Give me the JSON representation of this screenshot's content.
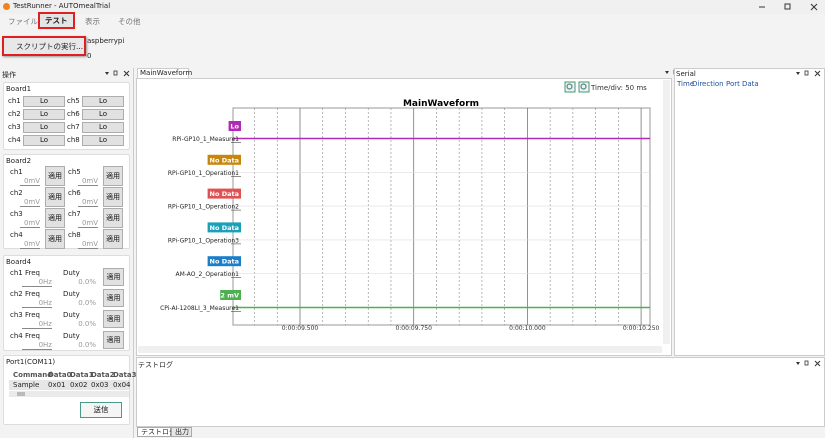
{
  "window": {
    "title": "TestRunner - AUTOmealTrial"
  },
  "menu": [
    "ファイル",
    "テスト",
    "表示",
    "その他"
  ],
  "dropdown": {
    "item": "スクリプトの実行..."
  },
  "toolbar": {
    "device": "aspberrypi",
    "value": "0"
  },
  "operations": {
    "title": "操作",
    "board1": {
      "title": "Board1",
      "channels": [
        {
          "name": "ch1",
          "button": "Lo"
        },
        {
          "name": "ch2",
          "button": "Lo"
        },
        {
          "name": "ch3",
          "button": "Lo"
        },
        {
          "name": "ch4",
          "button": "Lo"
        },
        {
          "name": "ch5",
          "button": "Lo"
        },
        {
          "name": "ch6",
          "button": "Lo"
        },
        {
          "name": "ch7",
          "button": "Lo"
        },
        {
          "name": "ch8",
          "button": "Lo"
        }
      ]
    },
    "board2": {
      "title": "Board2",
      "channels": [
        {
          "name": "ch1",
          "value": "0mV",
          "button": "適用"
        },
        {
          "name": "ch2",
          "value": "0mV",
          "button": "適用"
        },
        {
          "name": "ch3",
          "value": "0mV",
          "button": "適用"
        },
        {
          "name": "ch4",
          "value": "0mV",
          "button": "適用"
        },
        {
          "name": "ch5",
          "value": "0mV",
          "button": "適用"
        },
        {
          "name": "ch6",
          "value": "0mV",
          "button": "適用"
        },
        {
          "name": "ch7",
          "value": "0mV",
          "button": "適用"
        },
        {
          "name": "ch8",
          "value": "0mV",
          "button": "適用"
        }
      ]
    },
    "board4": {
      "title": "Board4",
      "channels": [
        {
          "name": "ch1 Freq",
          "freq": "0Hz",
          "duty_label": "Duty",
          "duty": "0.0%",
          "button": "適用"
        },
        {
          "name": "ch2 Freq",
          "freq": "0Hz",
          "duty_label": "Duty",
          "duty": "0.0%",
          "button": "適用"
        },
        {
          "name": "ch3 Freq",
          "freq": "0Hz",
          "duty_label": "Duty",
          "duty": "0.0%",
          "button": "適用"
        },
        {
          "name": "ch4 Freq",
          "freq": "0Hz",
          "duty_label": "Duty",
          "duty": "0.0%",
          "button": "適用"
        }
      ]
    },
    "port": {
      "title": "Port1(COM11)",
      "headers": [
        "Command",
        "Data0",
        "Data1",
        "Data2",
        "Data3"
      ],
      "row": [
        "Sample",
        "0x01",
        "0x02",
        "0x03",
        "0x04"
      ],
      "send": "送信"
    }
  },
  "waveform": {
    "tab": "MainWaveform",
    "time_div": "Time/div: 50 ms",
    "title": "MainWaveform",
    "channels": [
      {
        "name": "RPi-GP10_1_Measure1",
        "status": "Lo",
        "color": "#b02bb5"
      },
      {
        "name": "RPi-GP10_1_Operation1",
        "status": "No Data",
        "color": "#c8860b"
      },
      {
        "name": "RPi-GP10_1_Operation2",
        "status": "No Data",
        "color": "#e05252"
      },
      {
        "name": "RPi-GP10_1_Operation3",
        "status": "No Data",
        "color": "#1aa0b8"
      },
      {
        "name": "AM-AO_2_Operation1",
        "status": "No Data",
        "color": "#1a7fc8"
      },
      {
        "name": "CPi-AI-1208LI_3_Measure1",
        "status": "2 mV",
        "color": "#4caf50"
      }
    ],
    "time_labels": [
      "0:00:09.500",
      "0:00:09.750",
      "0:00:10.000",
      "0:00:10.250"
    ]
  },
  "serial": {
    "title": "Serial",
    "headers": [
      "Time",
      "Direction",
      "Port",
      "Data"
    ]
  },
  "log": {
    "title": "テストログ",
    "tabs": [
      "テストログ",
      "出力"
    ]
  }
}
